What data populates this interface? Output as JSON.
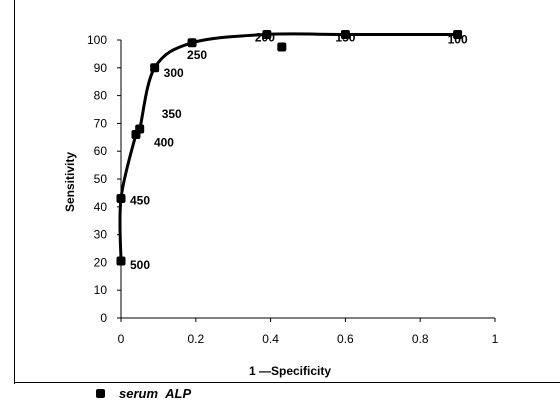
{
  "chart_data": {
    "type": "line",
    "xlabel": "1 —Specificity",
    "ylabel": "Sensitivity",
    "xlim": [
      0,
      1
    ],
    "ylim": [
      0,
      100
    ],
    "x_ticks": [
      "0",
      "0.2",
      "0.4",
      "0.6",
      "0.8",
      "1"
    ],
    "y_ticks": [
      "0",
      "10",
      "20",
      "30",
      "40",
      "50",
      "60",
      "70",
      "80",
      "90",
      "100"
    ],
    "grid": false,
    "legend": "bottom",
    "series": [
      {
        "name": "serum ALP",
        "color": "#000000",
        "marker": "square",
        "points": [
          {
            "x": 0.0,
            "y": 20.5,
            "label": "500"
          },
          {
            "x": 0.0,
            "y": 43,
            "label": "450"
          },
          {
            "x": 0.04,
            "y": 66,
            "label": "400"
          },
          {
            "x": 0.05,
            "y": 68,
            "label": "350"
          },
          {
            "x": 0.09,
            "y": 90,
            "label": "300"
          },
          {
            "x": 0.19,
            "y": 99,
            "label": "250"
          },
          {
            "x": 0.39,
            "y": 102,
            "label": "200"
          },
          {
            "x": 0.6,
            "y": 102,
            "label": "150"
          },
          {
            "x": 0.9,
            "y": 102,
            "label": "100"
          }
        ],
        "extra_points": [
          {
            "x": 0.43,
            "y": 97.5
          }
        ]
      }
    ]
  }
}
